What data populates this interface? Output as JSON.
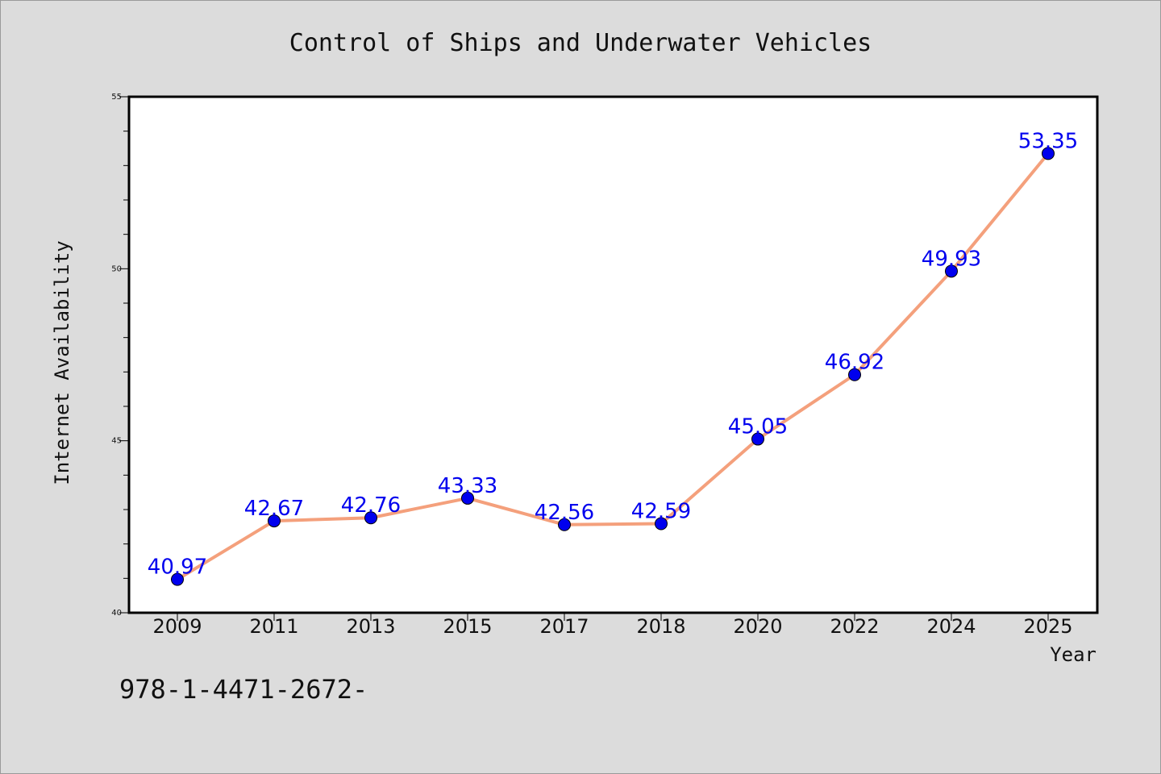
{
  "chart_data": {
    "type": "line",
    "title": "Control of Ships and Underwater Vehicles",
    "xlabel": "Year",
    "ylabel": "Internet Availability",
    "categories": [
      "2009",
      "2011",
      "2013",
      "2015",
      "2017",
      "2018",
      "2020",
      "2022",
      "2024",
      "2025"
    ],
    "series": [
      {
        "values": [
          40.97,
          42.67,
          42.76,
          43.33,
          42.56,
          42.59,
          45.05,
          46.92,
          49.93,
          53.35
        ],
        "line_color": "#f4a07c",
        "marker_color": "#0000ee",
        "label_color": "#0000ee"
      }
    ],
    "ylim": [
      40,
      55
    ],
    "yticks": [
      40,
      45,
      50,
      55
    ],
    "grid": false,
    "legend": "none"
  },
  "annotation": "978-1-4471-2672-",
  "colors": {
    "background": "#dcdcdc",
    "plot_background": "#ffffff",
    "axis": "#000000"
  }
}
